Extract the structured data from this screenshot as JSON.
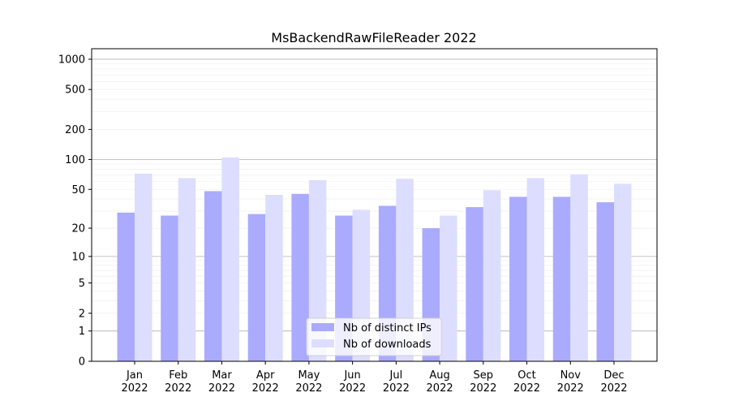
{
  "chart_data": {
    "type": "bar",
    "title": "MsBackendRawFileReader 2022",
    "xlabel": "",
    "ylabel": "",
    "y_scale": "log(1+y)",
    "ylim": [
      0,
      1300
    ],
    "y_ticks": [
      0,
      1,
      2,
      5,
      10,
      20,
      50,
      100,
      200,
      500,
      1000
    ],
    "grid": true,
    "legend_position": "lower center",
    "categories": [
      "Jan\n2022",
      "Feb\n2022",
      "Mar\n2022",
      "Apr\n2022",
      "May\n2022",
      "Jun\n2022",
      "Jul\n2022",
      "Aug\n2022",
      "Sep\n2022",
      "Oct\n2022",
      "Nov\n2022",
      "Dec\n2022"
    ],
    "series": [
      {
        "name": "Nb of distinct IPs",
        "color": "#aaaaff",
        "values": [
          29,
          27,
          48,
          28,
          45,
          27,
          34,
          20,
          33,
          42,
          42,
          37
        ]
      },
      {
        "name": "Nb of downloads",
        "color": "#ddddff",
        "values": [
          72,
          65,
          105,
          44,
          62,
          31,
          64,
          27,
          49,
          65,
          71,
          57
        ]
      }
    ]
  }
}
